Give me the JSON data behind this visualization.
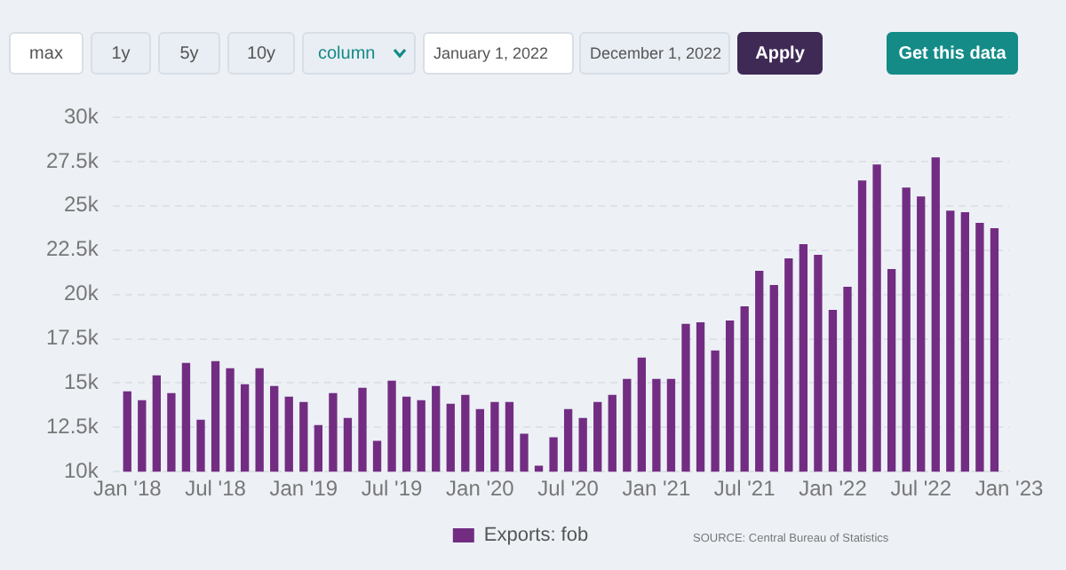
{
  "chart_data": {
    "type": "bar",
    "x": [
      "2018-01",
      "2018-02",
      "2018-03",
      "2018-04",
      "2018-05",
      "2018-06",
      "2018-07",
      "2018-08",
      "2018-09",
      "2018-10",
      "2018-11",
      "2018-12",
      "2019-01",
      "2019-02",
      "2019-03",
      "2019-04",
      "2019-05",
      "2019-06",
      "2019-07",
      "2019-08",
      "2019-09",
      "2019-10",
      "2019-11",
      "2019-12",
      "2020-01",
      "2020-02",
      "2020-03",
      "2020-04",
      "2020-05",
      "2020-06",
      "2020-07",
      "2020-08",
      "2020-09",
      "2020-10",
      "2020-11",
      "2020-12",
      "2021-01",
      "2021-02",
      "2021-03",
      "2021-04",
      "2021-05",
      "2021-06",
      "2021-07",
      "2021-08",
      "2021-09",
      "2021-10",
      "2021-11",
      "2021-12",
      "2022-01",
      "2022-02",
      "2022-03",
      "2022-04",
      "2022-05",
      "2022-06",
      "2022-07",
      "2022-08",
      "2022-09",
      "2022-10",
      "2022-11",
      "2022-12"
    ],
    "series": [
      {
        "name": "Exports: fob",
        "color": "#722d82",
        "values": [
          14500,
          14000,
          15400,
          14400,
          16100,
          12900,
          16200,
          15800,
          14900,
          15800,
          14800,
          14200,
          13900,
          12600,
          14400,
          13000,
          14700,
          11700,
          15100,
          14200,
          14000,
          14800,
          13800,
          14300,
          13500,
          13900,
          13900,
          12100,
          10300,
          11900,
          13500,
          13000,
          13900,
          14300,
          15200,
          16400,
          15200,
          15200,
          18300,
          18400,
          16800,
          18500,
          19300,
          21300,
          20500,
          22000,
          22800,
          22200,
          19100,
          20400,
          26400,
          27300,
          21400,
          26000,
          25500,
          27700,
          24700,
          24600,
          24000,
          23700
        ]
      }
    ],
    "xlim": [
      "2017-12-01",
      "2023-01-01"
    ],
    "xticks": [
      {
        "value": "2018-01",
        "label": "Jan '18"
      },
      {
        "value": "2018-07",
        "label": "Jul '18"
      },
      {
        "value": "2019-01",
        "label": "Jan '19"
      },
      {
        "value": "2019-07",
        "label": "Jul '19"
      },
      {
        "value": "2020-01",
        "label": "Jan '20"
      },
      {
        "value": "2020-07",
        "label": "Jul '20"
      },
      {
        "value": "2021-01",
        "label": "Jan '21"
      },
      {
        "value": "2021-07",
        "label": "Jul '21"
      },
      {
        "value": "2022-01",
        "label": "Jan '22"
      },
      {
        "value": "2022-07",
        "label": "Jul '22"
      },
      {
        "value": "2023-01",
        "label": "Jan '23"
      }
    ],
    "ylim": [
      10000,
      30000
    ],
    "yticks": [
      {
        "value": 10000,
        "label": "10k"
      },
      {
        "value": 12500,
        "label": "12.5k"
      },
      {
        "value": 15000,
        "label": "15k"
      },
      {
        "value": 17500,
        "label": "17.5k"
      },
      {
        "value": 20000,
        "label": "20k"
      },
      {
        "value": 22500,
        "label": "22.5k"
      },
      {
        "value": 25000,
        "label": "25k"
      },
      {
        "value": 27500,
        "label": "27.5k"
      },
      {
        "value": 30000,
        "label": "30k"
      }
    ],
    "grid": "y",
    "legend": "bottom",
    "annotations": [
      "max",
      "1y",
      "5y",
      "10y",
      "column",
      "January 1, 2022",
      "December 1, 2022",
      "Apply",
      "Get this data",
      "SOURCE: Central Bureau of Statistics"
    ]
  }
}
